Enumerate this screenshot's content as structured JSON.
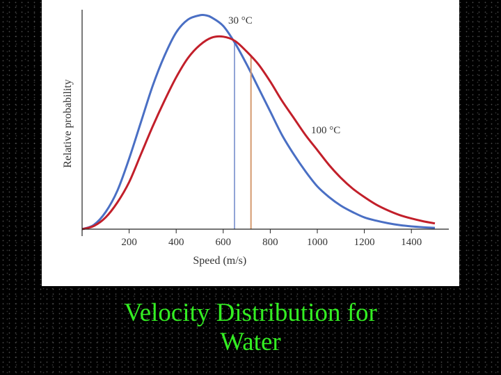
{
  "slide": {
    "title_line1": "Velocity Distribution for",
    "title_line2": "Water",
    "title_color": "#33ee22",
    "background_color": "#000000"
  },
  "chart_data": {
    "type": "line",
    "title": "",
    "xlabel": "Speed (m/s)",
    "ylabel": "Relative probability",
    "xlim": [
      0,
      1500
    ],
    "ylim": [
      0,
      1
    ],
    "xticks": [
      200,
      400,
      600,
      800,
      1000,
      1200,
      1400
    ],
    "grid": false,
    "series": [
      {
        "name": "30 °C",
        "color": "#4a6fc4",
        "x": [
          0,
          50,
          100,
          150,
          200,
          250,
          300,
          350,
          400,
          450,
          500,
          525,
          550,
          600,
          650,
          700,
          750,
          800,
          850,
          900,
          950,
          1000,
          1050,
          1100,
          1150,
          1200,
          1250,
          1300,
          1350,
          1400,
          1450,
          1500
        ],
        "y": [
          0,
          0.02,
          0.08,
          0.18,
          0.33,
          0.5,
          0.67,
          0.81,
          0.92,
          0.98,
          1.0,
          1.0,
          0.99,
          0.95,
          0.87,
          0.77,
          0.66,
          0.55,
          0.44,
          0.35,
          0.27,
          0.2,
          0.15,
          0.11,
          0.08,
          0.055,
          0.04,
          0.028,
          0.019,
          0.013,
          0.009,
          0.006
        ],
        "mean_speed": 648
      },
      {
        "name": "100 °C",
        "color": "#c21f2a",
        "x": [
          0,
          50,
          100,
          150,
          200,
          250,
          300,
          350,
          400,
          450,
          500,
          550,
          600,
          650,
          700,
          750,
          800,
          850,
          900,
          950,
          1000,
          1050,
          1100,
          1150,
          1200,
          1250,
          1300,
          1350,
          1400,
          1450,
          1500
        ],
        "y": [
          0,
          0.015,
          0.055,
          0.125,
          0.22,
          0.35,
          0.48,
          0.6,
          0.71,
          0.8,
          0.86,
          0.895,
          0.9,
          0.88,
          0.83,
          0.77,
          0.69,
          0.6,
          0.52,
          0.44,
          0.37,
          0.3,
          0.24,
          0.19,
          0.15,
          0.115,
          0.088,
          0.066,
          0.05,
          0.037,
          0.027
        ],
        "mean_speed": 718
      }
    ]
  }
}
